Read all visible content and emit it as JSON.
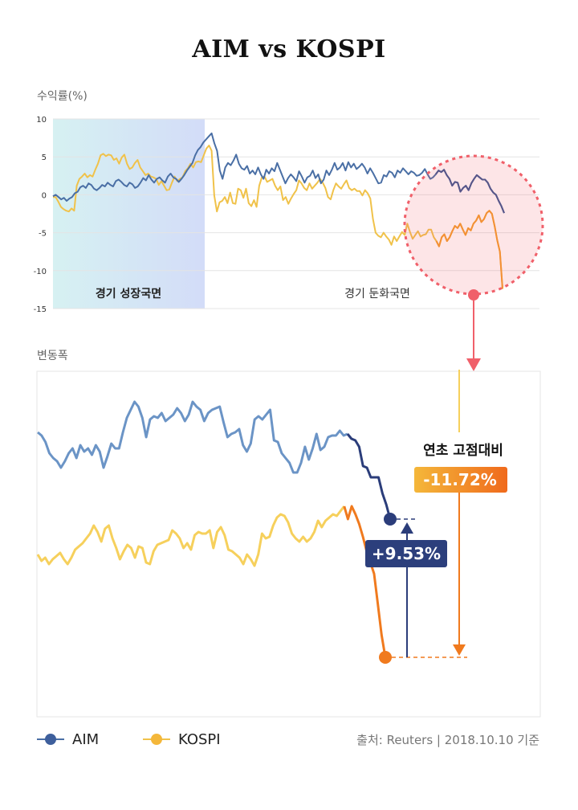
{
  "title": "AIM vs KOSPI",
  "top_ylabel": "수익률(%)",
  "bottom_label": "변동폭",
  "source": "출처: Reuters  |  2018.10.10 기준",
  "colors": {
    "aim": "#4a6fa5",
    "aim_dark": "#2b3d7a",
    "kospi": "#f0c24a",
    "kospi_dark": "#f07a1e",
    "highlight": "#f0606a"
  },
  "chart_data": [
    {
      "type": "line",
      "title": "AIM vs KOSPI",
      "xlabel": "",
      "ylabel": "수익률(%)",
      "ylim": [
        -15,
        10
      ],
      "yticks": [
        10,
        5,
        0,
        -5,
        -10,
        -15
      ],
      "grid": true,
      "legend": "bottom-left",
      "annotations": [
        {
          "text": "경기 성장국면",
          "region": "left"
        },
        {
          "text": "경기 둔화국면",
          "region": "right"
        }
      ],
      "series": [
        {
          "name": "AIM",
          "values": [
            -0.2,
            0,
            -0.3,
            -0.6,
            -0.4,
            -0.8,
            -0.5,
            -0.3,
            0.2,
            0.4,
            1,
            1.2,
            0.9,
            1.5,
            1.3,
            0.8,
            0.6,
            0.9,
            1.3,
            1.1,
            1.6,
            1.3,
            1.1,
            1.8,
            2,
            1.7,
            1.3,
            1.1,
            1.6,
            1.4,
            0.9,
            1.1,
            1.6,
            2.2,
            1.9,
            2.6,
            2,
            1.6,
            2.1,
            2.3,
            1.9,
            1.6,
            2.4,
            2.8,
            2.3,
            2.1,
            1.7,
            2.1,
            2.6,
            3.2,
            3.7,
            4.2,
            5.2,
            5.9,
            6.3,
            6.9,
            7.3,
            7.7,
            8.1,
            6.8,
            5.8,
            3.2,
            2.1,
            3.6,
            4.2,
            3.9,
            4.5,
            5.3,
            4.1,
            3.5,
            3.3,
            3.8,
            2.8,
            3.2,
            2.7,
            3.6,
            2.7,
            2.1,
            3.3,
            2.8,
            3.5,
            3.1,
            4.2,
            3.3,
            2.4,
            1.5,
            2.2,
            2.7,
            2.3,
            1.8,
            3.1,
            2.4,
            1.6,
            2.3,
            2.5,
            3.2,
            2.2,
            2.7,
            1.5,
            2,
            3.2,
            2.6,
            3.3,
            4.2,
            3.3,
            3.6,
            4.2,
            3.2,
            4.3,
            3.6,
            4.1,
            3.4,
            3.7,
            4.1,
            3.6,
            2.8,
            3.5,
            2.9,
            2.2,
            1.5,
            1.6,
            2.6,
            2.4,
            3.1,
            2.9,
            2.3,
            3.2,
            2.9,
            3.5,
            3.1,
            2.7,
            3.1,
            2.9,
            2.5,
            2.6,
            2.9,
            3.4,
            2.7,
            2.1,
            2.3,
            2.7,
            3.2,
            3,
            3.3,
            2.6,
            2.1,
            1.2,
            1.7,
            1.6,
            0.4,
            0.9,
            1.2,
            0.6,
            1.5,
            2.1,
            2.6,
            2.3,
            2,
            2,
            1.6,
            0.8,
            0.3,
            0,
            -0.8,
            -1.5,
            -2.4
          ]
        },
        {
          "name": "KOSPI",
          "values": [
            -0.3,
            -0.3,
            -0.9,
            -1.6,
            -1.9,
            -2.1,
            -2.2,
            -1.8,
            -2.1,
            1.2,
            2.1,
            2.4,
            2.8,
            2.3,
            2.6,
            2.4,
            3.3,
            4.1,
            5.2,
            5.4,
            5.1,
            5.3,
            5.2,
            4.6,
            4.8,
            4.1,
            4.9,
            5.3,
            4.1,
            3.4,
            3.6,
            4.2,
            4.6,
            3.6,
            3.1,
            2.6,
            2.8,
            2.4,
            2.3,
            2.1,
            1.3,
            1.8,
            1.2,
            0.6,
            0.7,
            1.6,
            2.4,
            1.8,
            2.1,
            2.3,
            3.1,
            3.5,
            4.1,
            3.6,
            4.3,
            4.4,
            4.3,
            5.2,
            6.1,
            6.5,
            5.8,
            -0.1,
            -2.2,
            -1,
            -0.8,
            -0.3,
            -1.1,
            0.3,
            -1.1,
            -1.2,
            0.8,
            0.6,
            -0.4,
            0.8,
            -1.1,
            -1.5,
            -0.7,
            -1.6,
            1.2,
            2.3,
            2.4,
            1.7,
            1.9,
            2.1,
            1.2,
            0.6,
            1.1,
            -0.7,
            -0.3,
            -1.2,
            -0.5,
            0.1,
            0.6,
            1.9,
            1.5,
            0.9,
            0.6,
            1.5,
            0.8,
            1.2,
            1.6,
            2.1,
            1.6,
            0.9,
            -0.3,
            -0.6,
            0.6,
            1.5,
            1.1,
            0.8,
            1.4,
            1.9,
            0.9,
            0.6,
            0.8,
            0.5,
            0.5,
            -0.1,
            0.6,
            0.2,
            -0.5,
            -3.2,
            -5,
            -5.4,
            -5.6,
            -5,
            -5.5,
            -5.9,
            -6.6,
            -5.5,
            -6.1,
            -5.5,
            -4.9,
            -5.3,
            -3.8,
            -4.9,
            -5.8,
            -5.3,
            -4.8,
            -5.5,
            -5.3,
            -5.2,
            -4.6,
            -4.6,
            -5.6,
            -6.1,
            -6.8,
            -5.6,
            -5.2,
            -6.1,
            -5.6,
            -4.8,
            -4.1,
            -4.4,
            -3.8,
            -4.6,
            -5.3,
            -4.4,
            -4.7,
            -3.8,
            -3.4,
            -2.7,
            -3.6,
            -3.2,
            -2.4,
            -2.1,
            -2.5,
            -4.1,
            -6,
            -7.5,
            -12.4
          ]
        }
      ]
    },
    {
      "type": "line",
      "xlabel": "",
      "ylabel": "변동폭",
      "grid": false,
      "annotations": [
        {
          "text": "연초 고점대비",
          "value": "-11.72%",
          "target": "KOSPI"
        },
        {
          "text": "+9.53%",
          "target": "AIM"
        }
      ],
      "series": [
        {
          "name": "AIM",
          "values": [
            -0.3,
            -0.5,
            -0.9,
            -1.6,
            -1.9,
            -2.1,
            -2.5,
            -2.1,
            -1.6,
            -1.3,
            -1.9,
            -1.1,
            -1.5,
            -1.3,
            -1.7,
            -1.1,
            -1.5,
            -2.5,
            -1.8,
            -1,
            -1.3,
            -1.3,
            -0.3,
            0.6,
            1.1,
            1.6,
            1.3,
            0.6,
            -0.6,
            0.5,
            0.7,
            0.6,
            0.9,
            0.4,
            0.6,
            0.8,
            1.2,
            0.9,
            0.4,
            0.8,
            1.6,
            1.3,
            1.1,
            0.4,
            0.9,
            1.1,
            1.2,
            1.3,
            0.3,
            -0.6,
            -0.4,
            -0.3,
            -0.1,
            -1.1,
            -1.5,
            -1,
            0.5,
            0.7,
            0.5,
            0.8,
            1.1,
            -0.8,
            -0.9,
            -1.6,
            -1.9,
            -2.2,
            -2.8,
            -2.8,
            -2.2,
            -1.2,
            -2,
            -1.3,
            -0.4,
            -1.4,
            -1.2,
            -0.6,
            -0.5,
            -0.5,
            -0.2,
            -0.5,
            -0.4,
            -0.7,
            -0.8,
            -1.2,
            -2.4,
            -2.5,
            -3.1,
            -3.1,
            -3.1,
            -4.1,
            -4.8,
            -5.7
          ]
        },
        {
          "name": "KOSPI",
          "values": [
            -7.9,
            -8.3,
            -8.1,
            -8.5,
            -8.2,
            -8,
            -7.8,
            -8.2,
            -8.5,
            -8.1,
            -7.6,
            -7.4,
            -7.2,
            -6.9,
            -6.6,
            -6.1,
            -6.5,
            -7.1,
            -6.3,
            -6.1,
            -6.9,
            -7.5,
            -8.2,
            -7.7,
            -7.3,
            -7.5,
            -8.1,
            -7.4,
            -7.5,
            -8.4,
            -8.5,
            -7.7,
            -7.3,
            -7.2,
            -7.1,
            -7,
            -6.4,
            -6.6,
            -6.9,
            -7.5,
            -7.2,
            -7.6,
            -6.7,
            -6.5,
            -6.6,
            -6.6,
            -6.4,
            -7.5,
            -6.5,
            -6.2,
            -6.7,
            -7.6,
            -7.7,
            -7.9,
            -8.1,
            -8.5,
            -7.9,
            -8.2,
            -8.6,
            -7.9,
            -6.6,
            -6.9,
            -6.8,
            -6.1,
            -5.6,
            -5.4,
            -5.5,
            -5.9,
            -6.6,
            -6.9,
            -7.1,
            -6.8,
            -7.1,
            -6.9,
            -6.5,
            -5.8,
            -6.2,
            -5.8,
            -5.6,
            -5.4,
            -5.5,
            -5.2,
            -4.9,
            -5.7,
            -4.9,
            -5.4,
            -6,
            -6.8,
            -7.7,
            -8.4,
            -9.1,
            -11,
            -12.9,
            -14.3
          ]
        }
      ]
    }
  ],
  "legend": {
    "aim_label": "AIM",
    "kospi_label": "KOSPI"
  }
}
